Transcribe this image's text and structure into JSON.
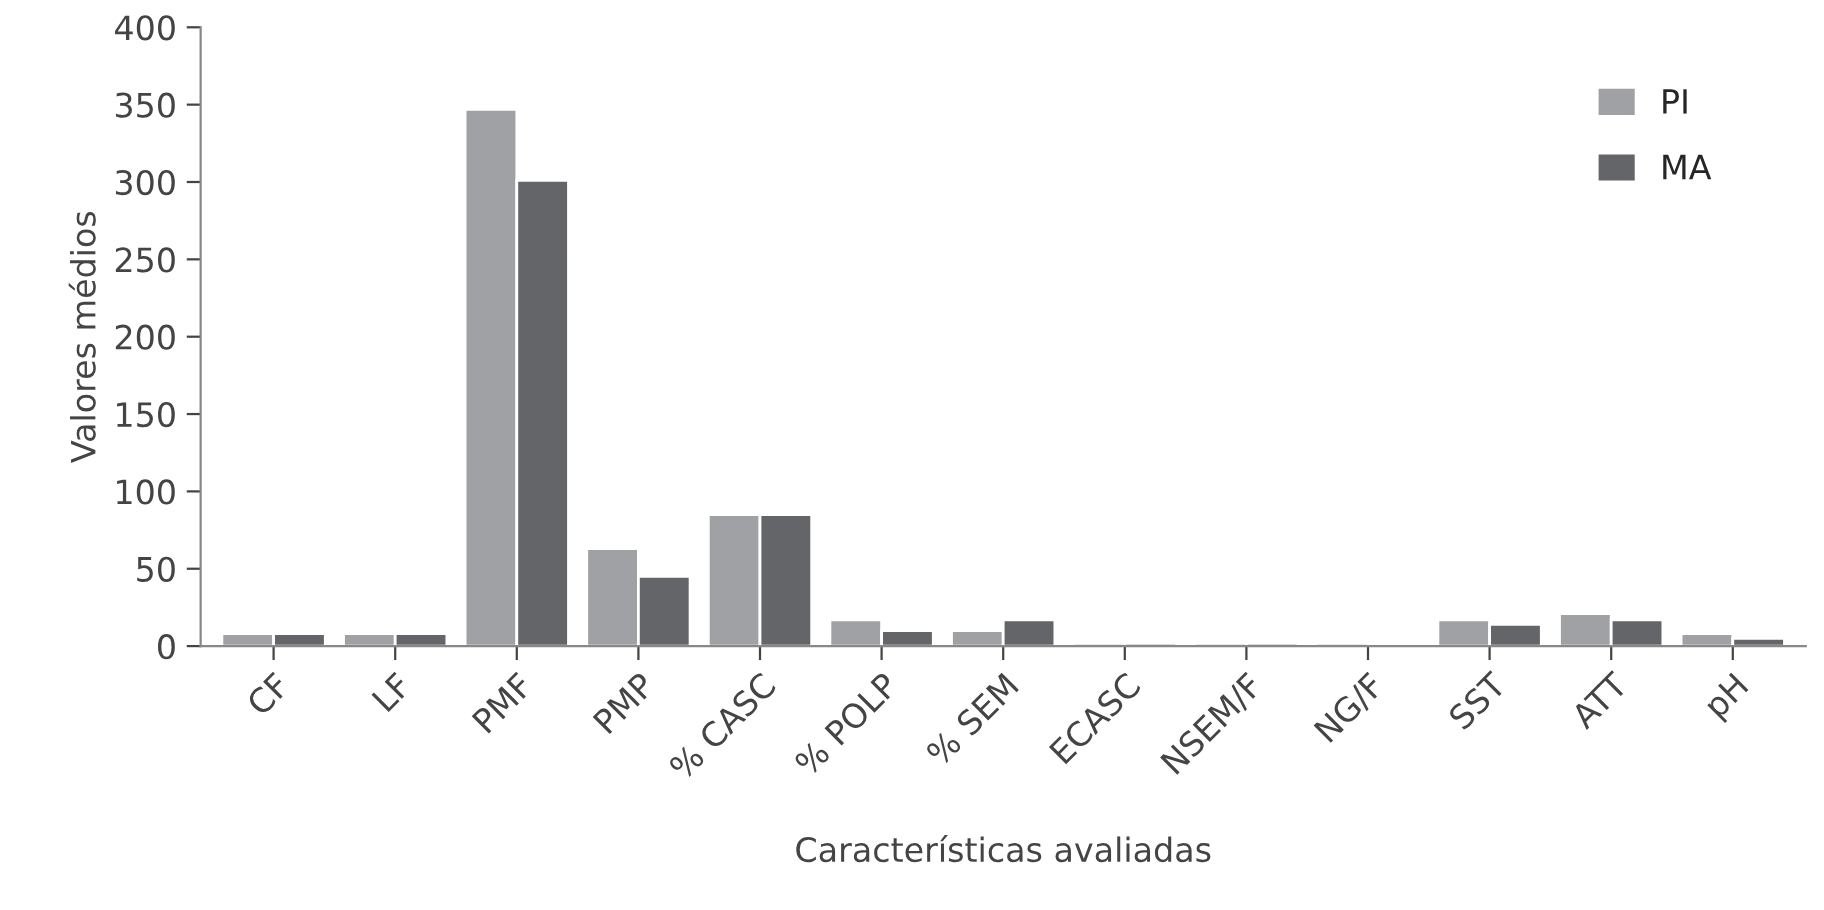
{
  "chart_data": {
    "type": "bar",
    "xlabel": "Características avaliadas",
    "ylabel": "Valores médios",
    "categories": [
      "CF",
      "LF",
      "PMF",
      "PMP",
      "% CASC",
      "% POLP",
      "% SEM",
      "ECASC",
      "NSEM/F",
      "NG/F",
      "SST",
      "ATT",
      "pH"
    ],
    "series": [
      {
        "name": "PI",
        "color": "#a0a1a4",
        "values": [
          8,
          8,
          347,
          63,
          85,
          17,
          10,
          2,
          2,
          2,
          17,
          21,
          8
        ]
      },
      {
        "name": "MA",
        "color": "#646569",
        "values": [
          8,
          8,
          301,
          45,
          85,
          10,
          17,
          2,
          2,
          1,
          14,
          17,
          5
        ]
      }
    ],
    "ylim": [
      0,
      400
    ],
    "yticks": [
      0,
      50,
      100,
      150,
      200,
      250,
      300,
      350,
      400
    ],
    "grid": false,
    "legend": "top right"
  }
}
